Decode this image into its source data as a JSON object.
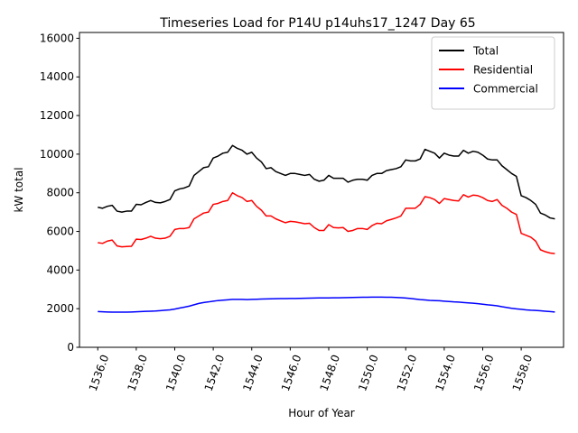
{
  "chart_data": {
    "type": "line",
    "title": "Timeseries Load for P14U p14uhs17_1247  Day 65",
    "xlabel": "Hour of Year",
    "ylabel": "kW total",
    "xlim": [
      1535.05,
      1560.2
    ],
    "ylim": [
      0,
      16300
    ],
    "x_ticks": [
      1536,
      1538,
      1540,
      1542,
      1544,
      1546,
      1548,
      1550,
      1552,
      1554,
      1556,
      1558
    ],
    "x_tick_labels": [
      "1536.0",
      "1538.0",
      "1540.0",
      "1542.0",
      "1544.0",
      "1546.0",
      "1548.0",
      "1550.0",
      "1552.0",
      "1554.0",
      "1556.0",
      "1558.0"
    ],
    "y_ticks": [
      0,
      2000,
      4000,
      6000,
      8000,
      10000,
      12000,
      14000,
      16000
    ],
    "y_tick_labels": [
      "0",
      "2000",
      "4000",
      "6000",
      "8000",
      "10000",
      "12000",
      "14000",
      "16000"
    ],
    "legend_position": "top-right",
    "x_start": 1536.0,
    "x_step": 0.25,
    "series": [
      {
        "name": "Total",
        "color": "#000000",
        "values": [
          7250,
          7200,
          7300,
          7350,
          7050,
          7000,
          7050,
          7050,
          7400,
          7380,
          7500,
          7600,
          7500,
          7480,
          7550,
          7650,
          8100,
          8200,
          8250,
          8350,
          8900,
          9100,
          9300,
          9350,
          9800,
          9900,
          10050,
          10100,
          10450,
          10300,
          10200,
          10000,
          10100,
          9800,
          9600,
          9250,
          9300,
          9100,
          9000,
          8900,
          9000,
          9000,
          8950,
          8900,
          8950,
          8700,
          8600,
          8650,
          8900,
          8750,
          8750,
          8750,
          8550,
          8650,
          8700,
          8700,
          8650,
          8900,
          9000,
          9000,
          9150,
          9200,
          9250,
          9350,
          9700,
          9650,
          9650,
          9750,
          10250,
          10150,
          10050,
          9800,
          10050,
          9950,
          9900,
          9900,
          10200,
          10050,
          10150,
          10100,
          9950,
          9750,
          9700,
          9700,
          9400,
          9200,
          9000,
          8850,
          7850,
          7750,
          7600,
          7400,
          6950,
          6850,
          6700,
          6650
        ]
      },
      {
        "name": "Residential",
        "color": "#ff0000",
        "values": [
          5420,
          5380,
          5500,
          5550,
          5250,
          5200,
          5220,
          5230,
          5600,
          5580,
          5650,
          5750,
          5650,
          5620,
          5650,
          5750,
          6100,
          6150,
          6150,
          6200,
          6650,
          6800,
          6950,
          7000,
          7400,
          7450,
          7550,
          7600,
          8000,
          7850,
          7750,
          7550,
          7600,
          7300,
          7100,
          6800,
          6800,
          6650,
          6550,
          6450,
          6520,
          6500,
          6450,
          6400,
          6420,
          6200,
          6050,
          6050,
          6350,
          6200,
          6180,
          6200,
          6000,
          6050,
          6150,
          6150,
          6100,
          6300,
          6420,
          6400,
          6550,
          6620,
          6700,
          6800,
          7200,
          7200,
          7200,
          7400,
          7800,
          7750,
          7650,
          7450,
          7700,
          7650,
          7600,
          7580,
          7900,
          7780,
          7880,
          7850,
          7750,
          7600,
          7550,
          7650,
          7350,
          7200,
          7000,
          6880,
          5900,
          5800,
          5700,
          5500,
          5050,
          4950,
          4880,
          4850
        ]
      },
      {
        "name": "Commercial",
        "color": "#0000ff",
        "values": [
          1850,
          1840,
          1830,
          1820,
          1820,
          1820,
          1820,
          1830,
          1840,
          1850,
          1860,
          1870,
          1880,
          1900,
          1920,
          1940,
          1980,
          2030,
          2080,
          2130,
          2200,
          2270,
          2320,
          2350,
          2390,
          2420,
          2440,
          2460,
          2480,
          2480,
          2480,
          2470,
          2480,
          2490,
          2500,
          2505,
          2510,
          2515,
          2520,
          2525,
          2530,
          2530,
          2535,
          2540,
          2545,
          2550,
          2555,
          2560,
          2560,
          2565,
          2565,
          2570,
          2575,
          2580,
          2585,
          2590,
          2595,
          2600,
          2600,
          2600,
          2595,
          2590,
          2580,
          2570,
          2550,
          2530,
          2500,
          2470,
          2450,
          2430,
          2420,
          2410,
          2390,
          2370,
          2350,
          2340,
          2320,
          2300,
          2280,
          2260,
          2230,
          2200,
          2180,
          2150,
          2100,
          2060,
          2020,
          1990,
          1970,
          1940,
          1920,
          1910,
          1890,
          1870,
          1850,
          1830
        ]
      }
    ]
  }
}
